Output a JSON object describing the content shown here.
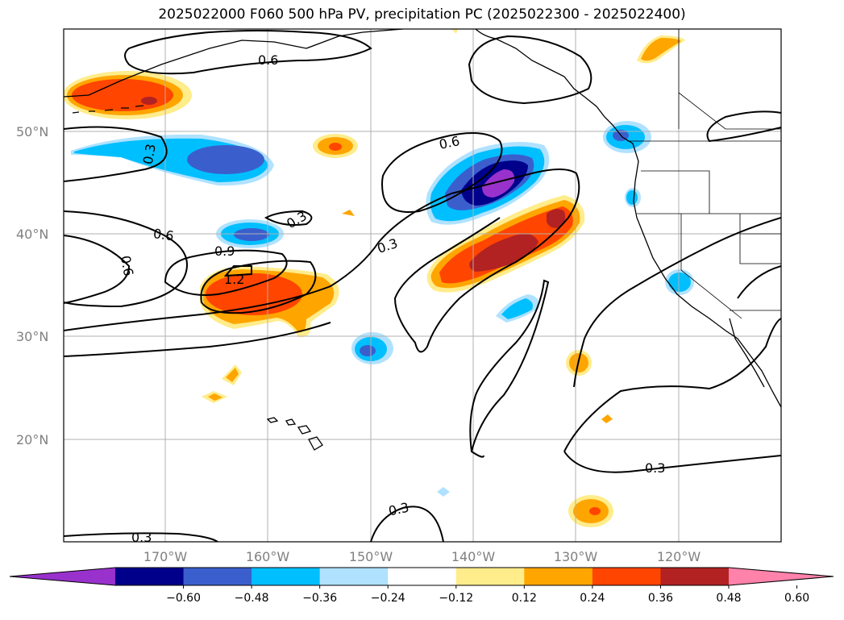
{
  "title": "2025022000 F060 500 hPa PV, precipitation PC (2025022300 - 2025022400)",
  "map": {
    "lon_range": [
      -180,
      -110
    ],
    "lat_range": [
      10,
      60
    ],
    "lat_labels": [
      "50°N",
      "40°N",
      "30°N",
      "20°N"
    ],
    "lon_labels": [
      "170°W",
      "160°W",
      "150°W",
      "140°W",
      "130°W",
      "120°W"
    ],
    "contour_labels": [
      "0.6",
      "0.3",
      "0.6",
      "0.6",
      "0.3",
      "0.9",
      "1.2",
      "0.3",
      "0.6",
      "0.3",
      "0.3",
      "0.3"
    ],
    "grid": true
  },
  "colorbar": {
    "colors": [
      "#9932cc",
      "#00008b",
      "#3a5fcd",
      "#00bfff",
      "#b0e2ff",
      "#ffffff",
      "#ffec8b",
      "#ffa500",
      "#ff4500",
      "#b22222",
      "#ff82ab"
    ],
    "tick_labels": [
      "−0.60",
      "−0.48",
      "−0.36",
      "−0.24",
      "−0.12",
      "0.12",
      "0.24",
      "0.36",
      "0.48",
      "0.60"
    ],
    "extend": "both"
  }
}
